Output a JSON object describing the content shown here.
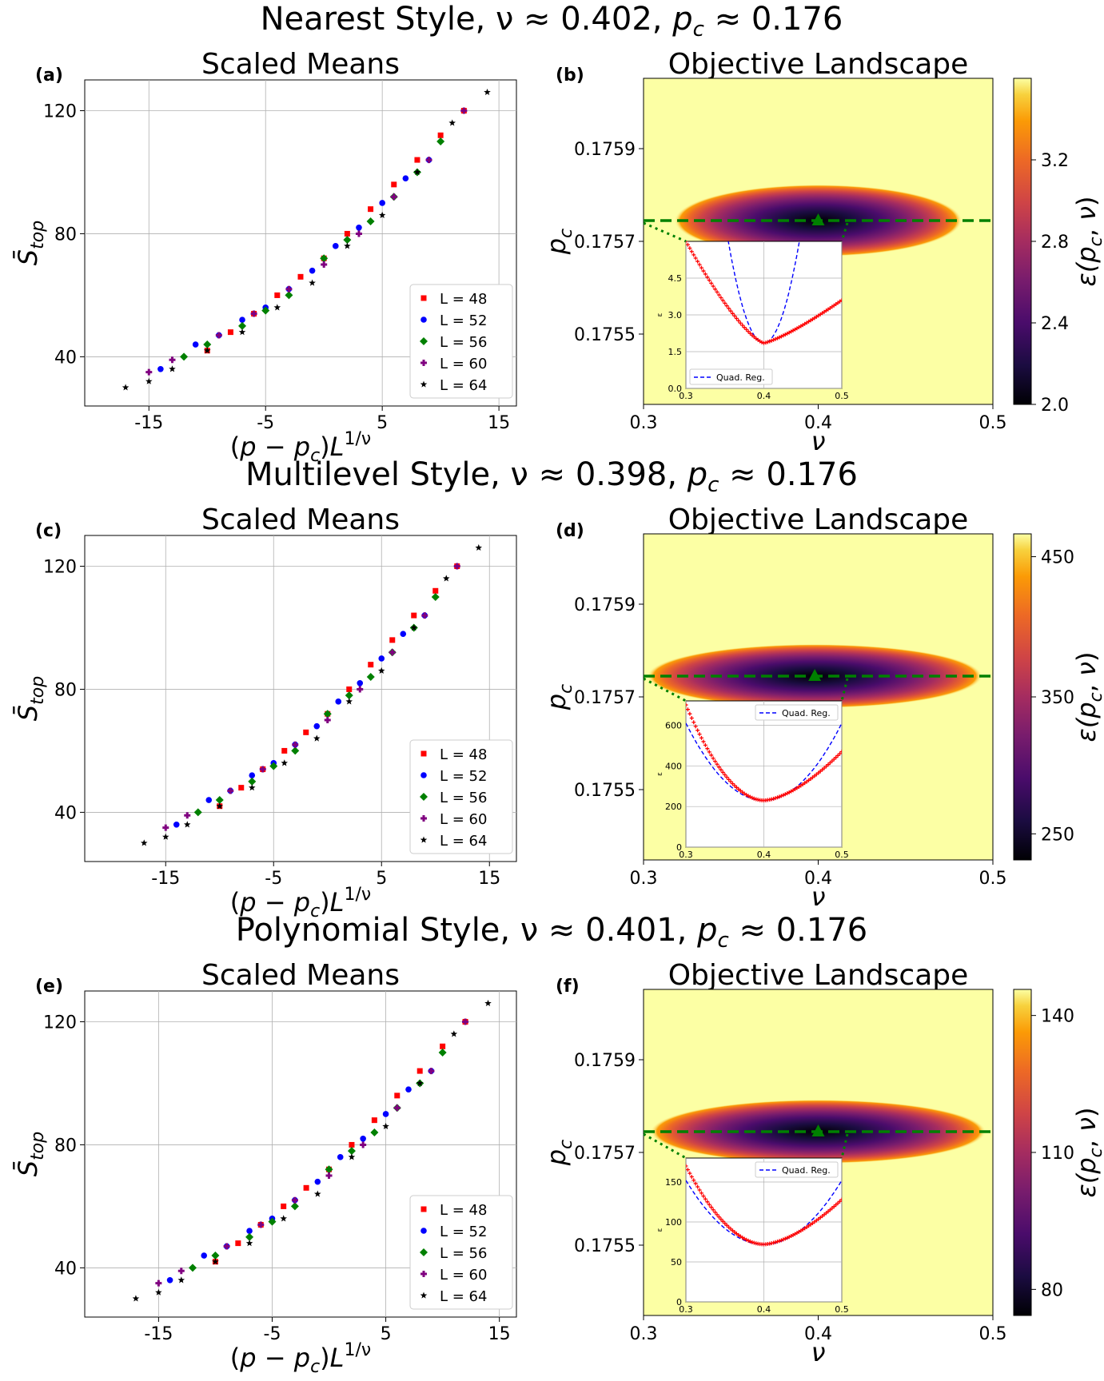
{
  "colors": {
    "L48": "#ff0000",
    "L52": "#0000ff",
    "L56": "#008000",
    "L60": "#800080",
    "L64": "#000000",
    "min_marker": "#008000",
    "fit_line": "#0000ff",
    "inset_points": "#ff0000"
  },
  "symbols": {
    "nu": "ν",
    "p": "p",
    "L": "L",
    "c": "c",
    "approx": "≈",
    "minus": "−",
    "top": "top",
    "S": "S",
    "epsilon": "ε",
    "exp": "1/ν"
  },
  "rows": [
    {
      "title_prefix": "Nearest Style, ",
      "nu_text": "0.402",
      "pc_text": "0.176",
      "left": {
        "label": "(a)",
        "title": "Scaled Means",
        "xlim": [
          -20.5,
          16.5
        ],
        "ylim": [
          24,
          130
        ],
        "xticks": [
          "-15",
          "-5",
          "5",
          "15"
        ],
        "xtick_vals": [
          -15,
          -5,
          5,
          15
        ],
        "yticks": [
          "40",
          "80",
          "120"
        ],
        "ytick_vals": [
          40,
          80,
          120
        ],
        "legend": [
          "L = 48",
          "L = 52",
          "L = 56",
          "L = 60",
          "L = 64"
        ]
      },
      "right": {
        "label": "(b)",
        "title": "Objective Landscape",
        "xticks": [
          "0.3",
          "0.4",
          "0.5"
        ],
        "yticks": [
          "0.1759",
          "0.1757",
          "0.1755"
        ],
        "min_nu": 0.4,
        "min_pc": 0.17575,
        "cbar_ticks": [
          "3.2",
          "2.8",
          "2.4",
          "2.0"
        ],
        "cbar_frac": [
          0.75,
          0.5,
          0.25,
          0.0
        ],
        "inset": {
          "xticks": [
            "0.3",
            "0.4",
            "0.5"
          ],
          "yticks": [
            "0.0",
            "1.5",
            "3.0",
            "4.5"
          ],
          "ymax": 6.0,
          "ytick_vals": [
            0,
            1.5,
            3.0,
            4.5
          ],
          "legend": "Quad. Reg.",
          "legend_pos": "bottom-left",
          "fit": {
            "a": 2000,
            "x0": 0.4,
            "y0": 1.85
          },
          "pts_left": [
            6.0,
            3.0
          ],
          "pts_right": [
            3.6,
            1.0
          ],
          "shape": "asym"
        }
      }
    },
    {
      "title_prefix": "Multilevel Style, ",
      "nu_text": "0.398",
      "pc_text": "0.176",
      "left": {
        "label": "(c)",
        "title": "Scaled Means",
        "xlim": [
          -22.5,
          17.5
        ],
        "ylim": [
          24,
          130
        ],
        "xticks": [
          "-15",
          "-5",
          "5",
          "15"
        ],
        "xtick_vals": [
          -15,
          -5,
          5,
          15
        ],
        "yticks": [
          "40",
          "80",
          "120"
        ],
        "ytick_vals": [
          40,
          80,
          120
        ],
        "legend": [
          "L = 48",
          "L = 52",
          "L = 56",
          "L = 60",
          "L = 64"
        ]
      },
      "right": {
        "label": "(d)",
        "title": "Objective Landscape",
        "xticks": [
          "0.3",
          "0.4",
          "0.5"
        ],
        "yticks": [
          "0.1759",
          "0.1757",
          "0.1755"
        ],
        "min_nu": 0.398,
        "min_pc": 0.17576,
        "cbar_ticks": [
          "450",
          "350",
          "250"
        ],
        "cbar_frac": [
          0.93,
          0.5,
          0.08
        ],
        "inset": {
          "xticks": [
            "0.3",
            "0.4",
            "0.5"
          ],
          "yticks": [
            "0",
            "200",
            "400",
            "600"
          ],
          "ymax": 720,
          "ytick_vals": [
            0,
            200,
            400,
            600
          ],
          "legend": "Quad. Reg.",
          "legend_pos": "top-right",
          "fit": {
            "a": 38000,
            "x0": 0.4,
            "y0": 230
          },
          "pts_left": [
            700,
            3.0
          ],
          "pts_right": [
            470,
            1.5
          ],
          "shape": "sym"
        }
      }
    },
    {
      "title_prefix": "Polynomial Style, ",
      "nu_text": "0.401",
      "pc_text": "0.176",
      "left": {
        "label": "(e)",
        "title": "Scaled Means",
        "xlim": [
          -21.5,
          16.5
        ],
        "ylim": [
          24,
          130
        ],
        "xticks": [
          "-15",
          "-5",
          "5",
          "15"
        ],
        "xtick_vals": [
          -15,
          -5,
          5,
          15
        ],
        "yticks": [
          "40",
          "80",
          "120"
        ],
        "ytick_vals": [
          40,
          80,
          120
        ],
        "legend": [
          "L = 48",
          "L = 52",
          "L = 56",
          "L = 60",
          "L = 64"
        ]
      },
      "right": {
        "label": "(f)",
        "title": "Objective Landscape",
        "xticks": [
          "0.3",
          "0.4",
          "0.5"
        ],
        "yticks": [
          "0.1759",
          "0.1757",
          "0.1755"
        ],
        "min_nu": 0.4,
        "min_pc": 0.17576,
        "cbar_ticks": [
          "140",
          "110",
          "80"
        ],
        "cbar_frac": [
          0.92,
          0.5,
          0.08
        ],
        "inset": {
          "xticks": [
            "0.3",
            "0.4",
            "0.5"
          ],
          "yticks": [
            "0",
            "50",
            "100",
            "150"
          ],
          "ymax": 180,
          "ytick_vals": [
            0,
            50,
            100,
            150
          ],
          "legend": "Quad. Reg.",
          "legend_pos": "top-right",
          "fit": {
            "a": 8000,
            "x0": 0.4,
            "y0": 72
          },
          "pts_left": [
            170,
            3.0
          ],
          "pts_right": [
            128,
            1.5
          ],
          "shape": "sym"
        }
      }
    }
  ],
  "chart_data": [
    {
      "type": "scatter",
      "title": "Scaled Means",
      "xlabel": "(p − p_c) L^{1/ν}",
      "ylabel": "S̄_top",
      "legend_position": "lower-right",
      "series": [
        {
          "name": "L = 48",
          "x": [
            -10,
            -8,
            -6,
            -4,
            -2,
            0,
            2,
            4,
            6,
            8,
            10,
            12
          ],
          "y": [
            42,
            48,
            54,
            60,
            66,
            72,
            80,
            88,
            96,
            104,
            112,
            120
          ]
        },
        {
          "name": "L = 52",
          "x": [
            -14,
            -11,
            -9,
            -7,
            -5,
            -3,
            -1,
            1,
            3,
            5,
            7,
            9
          ],
          "y": [
            36,
            44,
            47,
            52,
            56,
            62,
            68,
            76,
            82,
            90,
            98,
            104
          ]
        },
        {
          "name": "L = 56",
          "x": [
            -12,
            -10,
            -7,
            -5,
            -3,
            0,
            2,
            4,
            6,
            8,
            10
          ],
          "y": [
            40,
            44,
            50,
            55,
            60,
            72,
            78,
            84,
            92,
            100,
            110
          ]
        },
        {
          "name": "L = 60",
          "x": [
            -15,
            -13,
            -9,
            -6,
            -3,
            0,
            3,
            6,
            9,
            12
          ],
          "y": [
            35,
            39,
            47,
            54,
            62,
            70,
            80,
            92,
            104,
            120
          ]
        },
        {
          "name": "L = 64",
          "x": [
            -17,
            -15,
            -13,
            -10,
            -7,
            -4,
            -1,
            2,
            5,
            8,
            11,
            14
          ],
          "y": [
            30,
            32,
            36,
            42,
            48,
            56,
            64,
            76,
            86,
            100,
            116,
            126
          ]
        }
      ]
    },
    {
      "type": "heatmap",
      "title": "Objective Landscape",
      "xlabel": "ν",
      "ylabel": "p_c",
      "x_range": [
        0.3,
        0.5
      ],
      "colorbar_label": "ε(p_c, ν)",
      "minimum": {
        "nu": 0.402,
        "pc": 0.176
      }
    }
  ]
}
